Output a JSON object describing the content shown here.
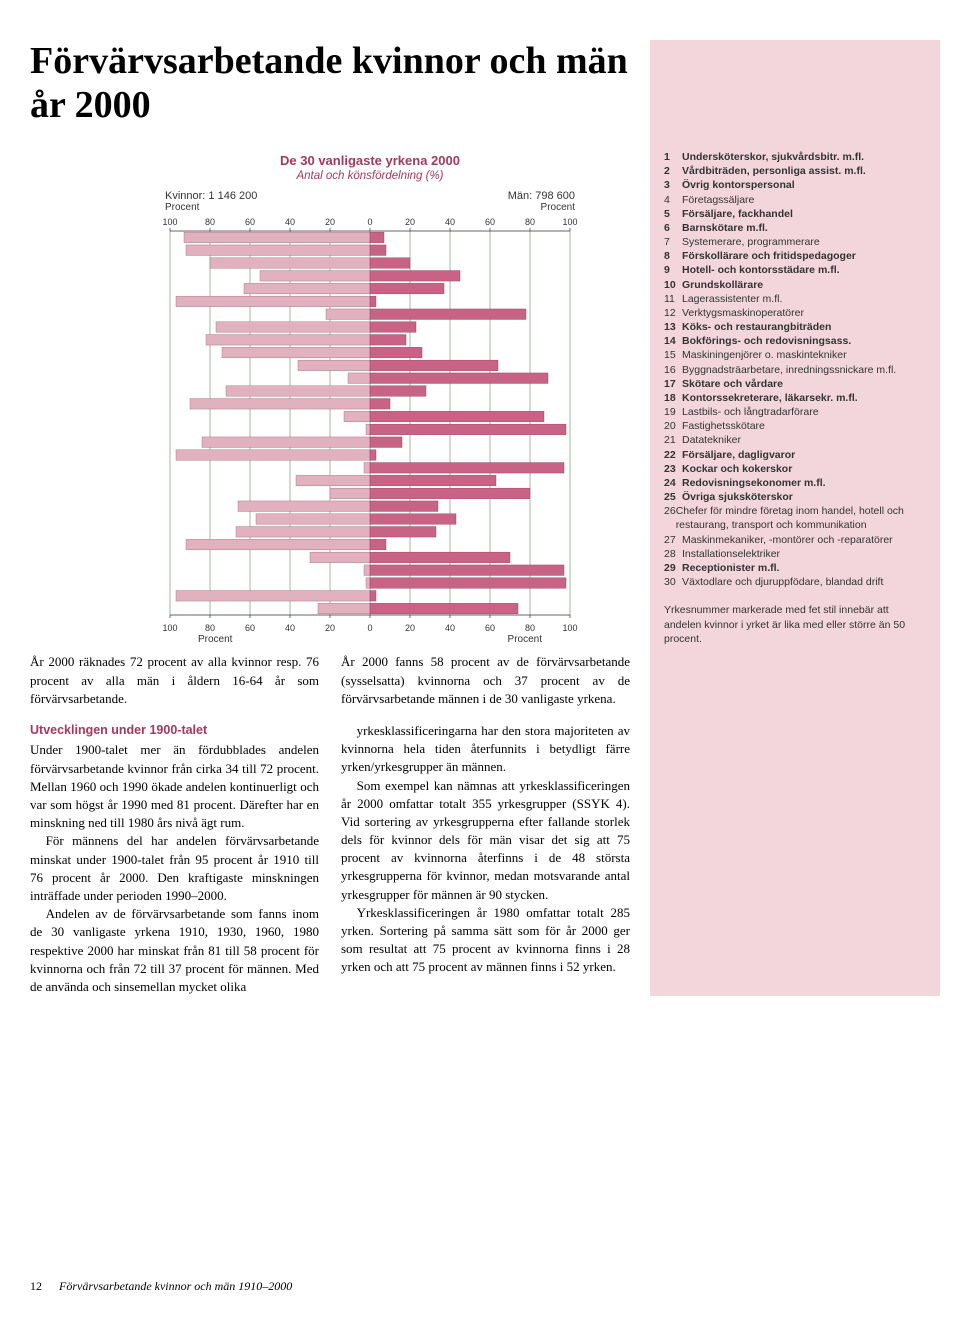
{
  "title": "Förvärvsarbetande kvinnor och män år 2000",
  "chart": {
    "title": "De 30 vanligaste yrkena 2000",
    "subtitle": "Antal och könsfördelning (%)",
    "left_header": "Kvinnor: 1 146 200",
    "right_header": "Män: 798 600",
    "axis_label": "Procent",
    "ticks": [
      100,
      80,
      60,
      40,
      20,
      0,
      20,
      40,
      60,
      80,
      100
    ],
    "left_color": "#e1b1bf",
    "right_color": "#c96386",
    "grid_color": "#7a9a7a",
    "rows": [
      {
        "l": 93,
        "r": 7
      },
      {
        "l": 92,
        "r": 8
      },
      {
        "l": 80,
        "r": 20
      },
      {
        "l": 55,
        "r": 45
      },
      {
        "l": 63,
        "r": 37
      },
      {
        "l": 97,
        "r": 3
      },
      {
        "l": 22,
        "r": 78
      },
      {
        "l": 77,
        "r": 23
      },
      {
        "l": 82,
        "r": 18
      },
      {
        "l": 74,
        "r": 26
      },
      {
        "l": 36,
        "r": 64
      },
      {
        "l": 11,
        "r": 89
      },
      {
        "l": 72,
        "r": 28
      },
      {
        "l": 90,
        "r": 10
      },
      {
        "l": 13,
        "r": 87
      },
      {
        "l": 2,
        "r": 98
      },
      {
        "l": 84,
        "r": 16
      },
      {
        "l": 97,
        "r": 3
      },
      {
        "l": 3,
        "r": 97
      },
      {
        "l": 37,
        "r": 63
      },
      {
        "l": 20,
        "r": 80
      },
      {
        "l": 66,
        "r": 34
      },
      {
        "l": 57,
        "r": 43
      },
      {
        "l": 67,
        "r": 33
      },
      {
        "l": 92,
        "r": 8
      },
      {
        "l": 30,
        "r": 70
      },
      {
        "l": 3,
        "r": 97
      },
      {
        "l": 2,
        "r": 98
      },
      {
        "l": 97,
        "r": 3
      },
      {
        "l": 26,
        "r": 74
      }
    ]
  },
  "caption_left": "År 2000 räknades 72 procent av alla kvinnor resp. 76 procent av alla män i åldern 16-64 år som förvärvsarbetande.",
  "caption_right": "År 2000 fanns 58 procent av de förvärvsarbetande (sysselsatta) kvinnorna och 37 procent av de förvärvsarbetande männen i de 30 vanligaste yrkena.",
  "section_heading": "Utvecklingen under 1900-talet",
  "body_left": [
    "Under 1900-talet mer än fördubblades andelen förvärvsarbetande kvinnor från cirka 34 till 72 procent. Mellan 1960 och 1990 ökade andelen kontinuerligt och var som högst år 1990 med 81 procent. Därefter har en minskning ned till 1980 års nivå ägt rum.",
    "För männens del har andelen förvärvsarbetande minskat under 1900-talet från 95 procent år 1910 till 76 procent år 2000. Den kraftigaste minskningen inträffade under perioden 1990–2000.",
    "Andelen av de förvärvsarbetande som fanns inom de 30 vanligaste yrkena 1910, 1930, 1960, 1980 respektive 2000 har minskat från 81 till 58 procent för kvinnorna och från 72 till 37 procent för männen. Med de använda och sinsemellan mycket olika"
  ],
  "body_right": [
    "yrkesklassificeringarna har den stora majoriteten av kvinnorna hela tiden återfunnits i betydligt färre yrken/yrkesgrupper än männen.",
    "Som exempel kan nämnas att yrkesklassificeringen år 2000 omfattar totalt 355 yrkesgrupper (SSYK 4). Vid sortering av yrkesgrupperna efter fallande storlek dels för kvinnor dels för män visar det sig att 75 procent av kvinnorna återfinns i de 48 största yrkesgrupperna för kvinnor, medan motsvarande antal yrkesgrupper för männen är 90 stycken.",
    "Yrkesklassificeringen år 1980 omfattar totalt 285 yrken. Sortering på samma sätt som för år 2000 ger som resultat att 75 procent av kvinnorna finns i 28 yrken och att 75 procent av männen finns i 52 yrken."
  ],
  "legend": [
    {
      "n": 1,
      "t": "Undersköterskor, sjukvårdsbitr. m.fl.",
      "b": true
    },
    {
      "n": 2,
      "t": "Vårdbiträden, personliga assist. m.fl.",
      "b": true
    },
    {
      "n": 3,
      "t": "Övrig kontorspersonal",
      "b": true
    },
    {
      "n": 4,
      "t": "Företagssäljare",
      "b": false
    },
    {
      "n": 5,
      "t": "Försäljare, fackhandel",
      "b": true
    },
    {
      "n": 6,
      "t": "Barnskötare m.fl.",
      "b": true
    },
    {
      "n": 7,
      "t": "Systemerare, programmerare",
      "b": false
    },
    {
      "n": 8,
      "t": "Förskollärare och fritidspedagoger",
      "b": true
    },
    {
      "n": 9,
      "t": "Hotell- och kontorsstädare m.fl.",
      "b": true
    },
    {
      "n": 10,
      "t": "Grundskollärare",
      "b": true
    },
    {
      "n": 11,
      "t": "Lagerassistenter m.fl.",
      "b": false
    },
    {
      "n": 12,
      "t": "Verktygsmaskinoperatörer",
      "b": false
    },
    {
      "n": 13,
      "t": "Köks- och restaurangbiträden",
      "b": true
    },
    {
      "n": 14,
      "t": "Bokförings- och redovisningsass.",
      "b": true
    },
    {
      "n": 15,
      "t": "Maskiningenjörer o. maskintekniker",
      "b": false
    },
    {
      "n": 16,
      "t": "Byggnadsträarbetare, inredningssnickare m.fl.",
      "b": false
    },
    {
      "n": 17,
      "t": "Skötare och vårdare",
      "b": true
    },
    {
      "n": 18,
      "t": "Kontorssekreterare, läkarsekr. m.fl.",
      "b": true
    },
    {
      "n": 19,
      "t": "Lastbils- och långtradarförare",
      "b": false
    },
    {
      "n": 20,
      "t": "Fastighetsskötare",
      "b": false
    },
    {
      "n": 21,
      "t": "Datatekniker",
      "b": false
    },
    {
      "n": 22,
      "t": "Försäljare, dagligvaror",
      "b": true
    },
    {
      "n": 23,
      "t": "Kockar och kokerskor",
      "b": true
    },
    {
      "n": 24,
      "t": "Redovisningsekonomer m.fl.",
      "b": true
    },
    {
      "n": 25,
      "t": "Övriga sjuksköterskor",
      "b": true
    },
    {
      "n": 26,
      "t": "Chefer för mindre företag inom handel, hotell och restaurang, transport och kommunikation",
      "b": false
    },
    {
      "n": 27,
      "t": "Maskinmekaniker, -montörer och -reparatörer",
      "b": false
    },
    {
      "n": 28,
      "t": "Installationselektriker",
      "b": false
    },
    {
      "n": 29,
      "t": "Receptionister m.fl.",
      "b": true
    },
    {
      "n": 30,
      "t": "Växtodlare och djuruppfödare, blandad drift",
      "b": false
    }
  ],
  "legend_note": "Yrkesnummer markerade med fet stil innebär att andelen kvinnor i yrket är lika med eller större än 50 procent.",
  "footer_page": "12",
  "footer_text": "Förvärvsarbetande kvinnor och män 1910–2000"
}
